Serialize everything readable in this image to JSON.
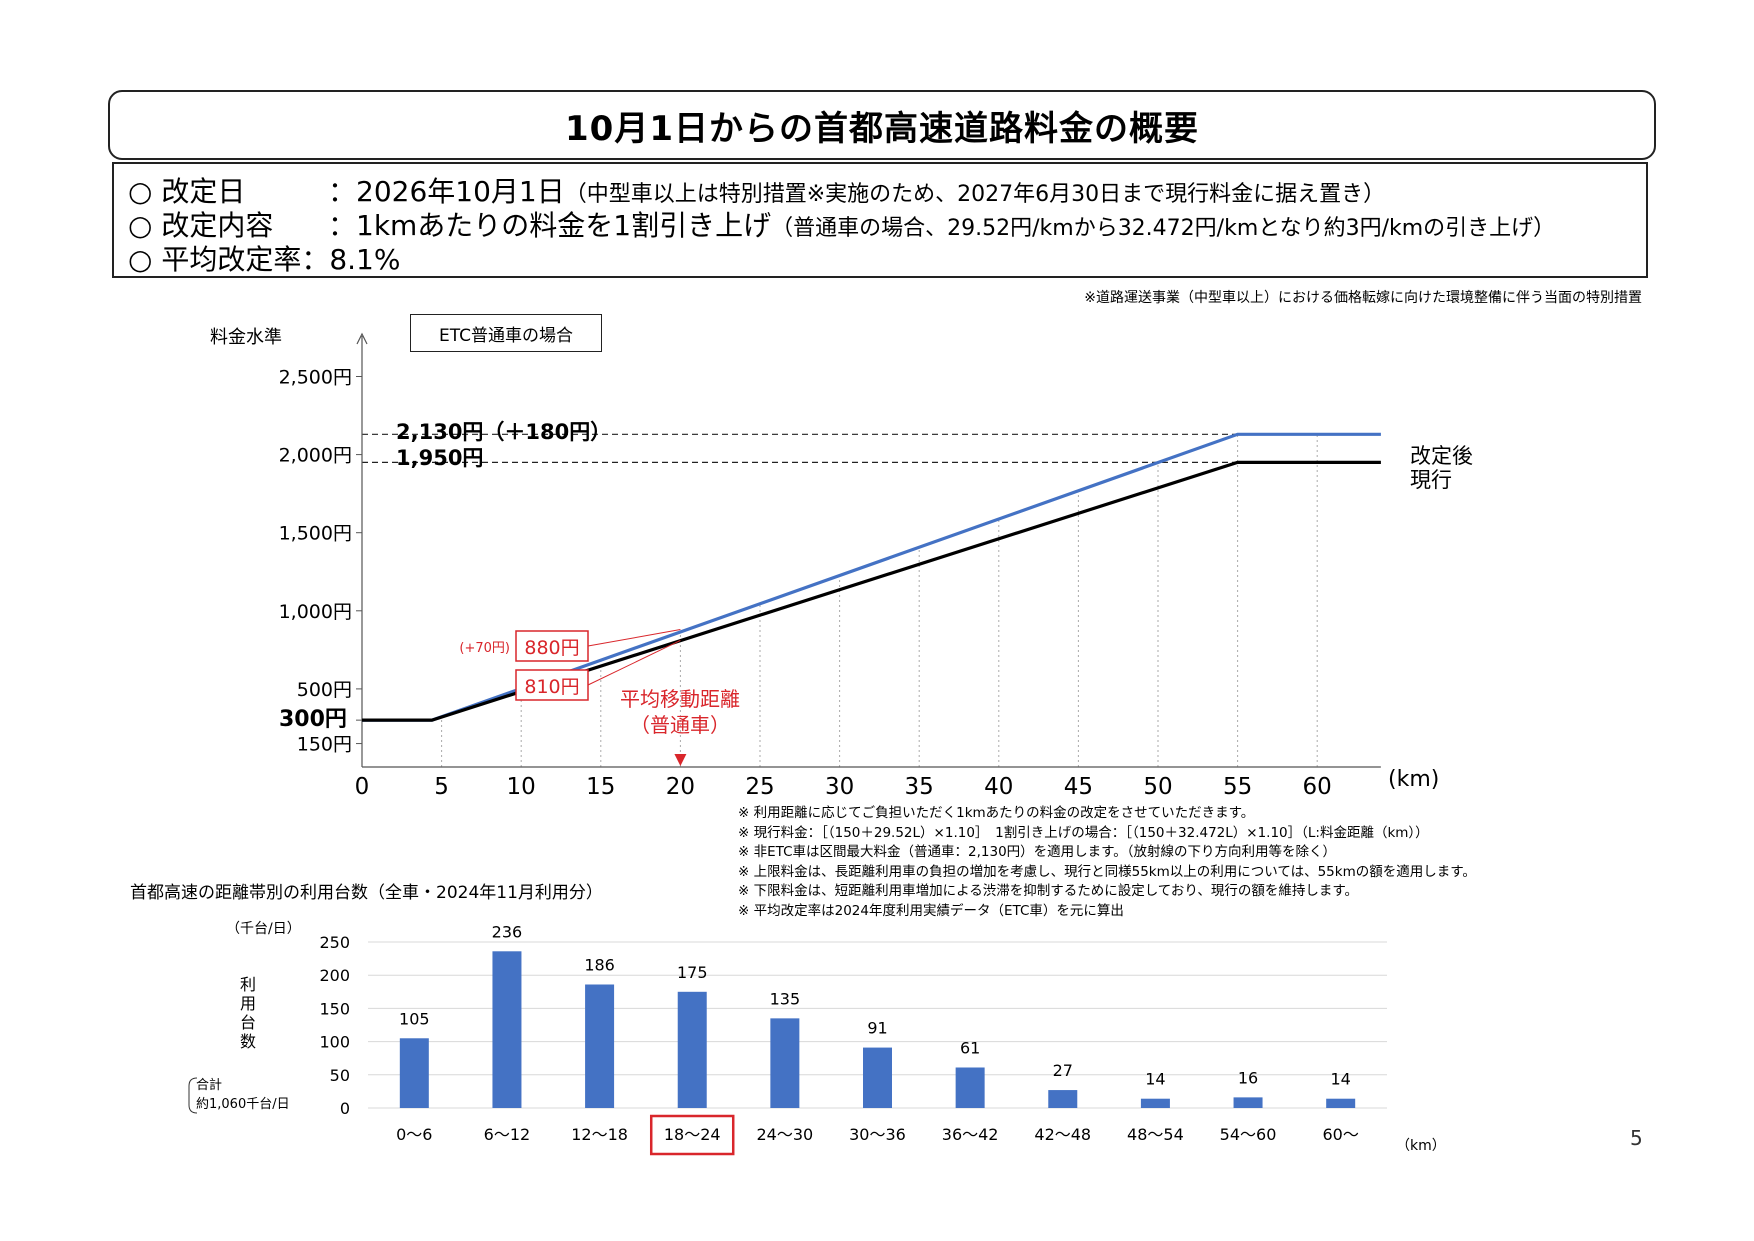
{
  "title": "10月1日からの首都高速道路料金の概要",
  "info": {
    "rows": [
      {
        "label": "○ 改定日",
        "value": "：2026年10月1日",
        "sub": "（中型車以上は特別措置※実施のため、2027年6月30日まで現行料金に据え置き）"
      },
      {
        "label": "○ 改定内容",
        "value": "：1kmあたりの料金を1割引き上げ",
        "sub": "（普通車の場合、29.52円/kmから32.472円/kmとなり約3円/kmの引き上げ）"
      },
      {
        "label": "○ 平均改定率",
        "value": "：8.1%",
        "sub": ""
      }
    ]
  },
  "top_footnote": "※道路運送事業（中型車以上）における価格転嫁に向けた環境整備に伴う当面の特別措置",
  "etc_label": "ETC普通車の場合",
  "chart1_labels": {
    "ylabel": "料金水準",
    "xunit": "(km)",
    "price_new": "2,130円（＋180円）",
    "price_old": "1,950円",
    "min_price": "300円",
    "legend_new": "改定後",
    "legend_old": "現行",
    "callout_new": "880円",
    "callout_old": "810円",
    "callout_diff": "(+70円)",
    "avg_line1": "平均移動距離",
    "avg_line2": "（普通車）"
  },
  "notes": [
    "※ 利用距離に応じてご負担いただく1kmあたりの料金の改定をさせていただきます。",
    "※ 現行料金：［（150＋29.52L）×1.10］　1割引き上げの場合：［（150＋32.472L）×1.10］（L:料金距離（km））",
    "※ 非ETC車は区間最大料金（普通車：2,130円）を適用します。（放射線の下り方向利用等を除く）",
    "※ 上限料金は、長距離利用車の負担の増加を考慮し、現行と同様55km以上の利用については、55kmの額を適用します。",
    "※ 下限料金は、短距離利用車増加による渋滞を抑制するために設定しており、現行の額を維持します。",
    "※ 平均改定率は2024年度利用実績データ（ETC車）を元に算出"
  ],
  "chart2_labels": {
    "title": "首都高速の距離帯別の利用台数（全車・2024年11月利用分）",
    "unit": "（千台/日）",
    "ylabel_chars": [
      "利",
      "用",
      "台",
      "数"
    ],
    "total_line1": "合計",
    "total_line2": "約1,060千台/日",
    "xunit": "（km）"
  },
  "page_number": "5",
  "colors": {
    "new": "#4472c4",
    "old": "#000000",
    "bar": "#4472c4",
    "highlight": "#d9262b",
    "callout": "#d9262b"
  },
  "chart_data": [
    {
      "type": "line",
      "x": [
        0,
        5,
        10,
        15,
        20,
        25,
        30,
        35,
        40,
        45,
        50,
        55,
        60
      ],
      "ylim": [
        0,
        2500
      ],
      "yticks": [
        150,
        300,
        500,
        1000,
        1500,
        2000,
        2500
      ],
      "ytick_labels": [
        "150円",
        "300円",
        "500円",
        "1,000円",
        "1,500円",
        "2,000円",
        "2,500円"
      ],
      "xlim": [
        0,
        64
      ],
      "series": [
        {
          "name": "改定後",
          "points": [
            [
              0,
              300
            ],
            [
              4.4,
              300
            ],
            [
              55,
              2130
            ],
            [
              64,
              2130
            ]
          ]
        },
        {
          "name": "現行",
          "points": [
            [
              0,
              300
            ],
            [
              4.4,
              300
            ],
            [
              55,
              1950
            ],
            [
              64,
              1950
            ]
          ]
        }
      ],
      "annotations": {
        "avg_distance_km": 20,
        "price_new_at_avg": 880,
        "price_old_at_avg": 810
      }
    },
    {
      "type": "bar",
      "categories": [
        "0〜6",
        "6〜12",
        "12〜18",
        "18〜24",
        "24〜30",
        "30〜36",
        "36〜42",
        "42〜48",
        "48〜54",
        "54〜60",
        "60〜"
      ],
      "values": [
        105,
        236,
        186,
        175,
        135,
        91,
        61,
        27,
        14,
        16,
        14
      ],
      "ylim": [
        0,
        250
      ],
      "yticks": [
        0,
        50,
        100,
        150,
        200,
        250
      ],
      "highlight": "18〜24"
    }
  ]
}
